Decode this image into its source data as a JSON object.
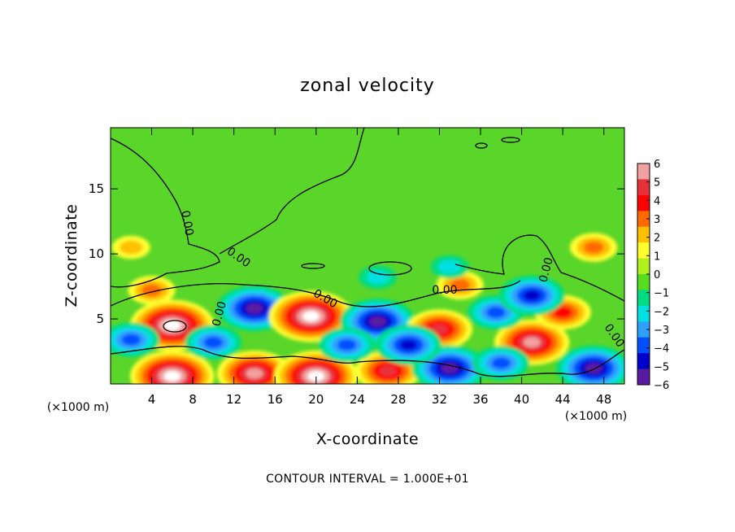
{
  "chart_data": {
    "type": "heatmap",
    "title": "zonal velocity",
    "xlabel": "X-coordinate",
    "ylabel": "Z-coordinate",
    "x_unit": "(×1000 m)",
    "z_unit": "(×1000 m)",
    "x_ticks": [
      4,
      8,
      12,
      16,
      20,
      24,
      28,
      32,
      36,
      40,
      44,
      48
    ],
    "y_ticks": [
      5,
      10,
      15
    ],
    "xlim": [
      0,
      50
    ],
    "ylim": [
      0,
      19.7
    ],
    "colorbar": {
      "ticks": [
        6,
        5,
        4,
        3,
        2,
        1,
        0,
        -1,
        -2,
        -3,
        -4,
        -5,
        -6
      ],
      "range": [
        -6,
        6
      ],
      "colors": [
        "#f2a0a0",
        "#e8303a",
        "#ff0000",
        "#ff6a00",
        "#ffc000",
        "#ffff30",
        "#b0f020",
        "#55dd22",
        "#00dc80",
        "#00e0e0",
        "#30a0ff",
        "#0050ff",
        "#0000cc",
        "#5a1aa0"
      ]
    },
    "contour_label": "0.00",
    "contour_interval_text": "CONTOUR INTERVAL = 1.000E+01",
    "features": [
      {
        "x": 6,
        "z": 4.5,
        "value": 7
      },
      {
        "x": 14,
        "z": 5.8,
        "value": -6
      },
      {
        "x": 19.5,
        "z": 5.2,
        "value": 7
      },
      {
        "x": 26,
        "z": 4.8,
        "value": -6
      },
      {
        "x": 32,
        "z": 4.2,
        "value": 5
      },
      {
        "x": 41,
        "z": 3.2,
        "value": 6
      },
      {
        "x": 44,
        "z": 5.5,
        "value": 4
      },
      {
        "x": 47,
        "z": 1.2,
        "value": -6
      },
      {
        "x": 6,
        "z": 0.6,
        "value": 7
      },
      {
        "x": 14,
        "z": 0.8,
        "value": 6
      },
      {
        "x": 20,
        "z": 0.6,
        "value": 7
      },
      {
        "x": 27,
        "z": 1.0,
        "value": 5
      },
      {
        "x": 33,
        "z": 1.2,
        "value": -6
      },
      {
        "x": 2,
        "z": 3.4,
        "value": -4
      },
      {
        "x": 10,
        "z": 3.2,
        "value": -4
      },
      {
        "x": 23,
        "z": 3.0,
        "value": -4
      },
      {
        "x": 29,
        "z": 3.0,
        "value": -5
      },
      {
        "x": 37.5,
        "z": 5.5,
        "value": -4
      },
      {
        "x": 41,
        "z": 6.8,
        "value": -5
      },
      {
        "x": 38,
        "z": 1.6,
        "value": -4
      },
      {
        "x": 4,
        "z": 7.2,
        "value": 3
      },
      {
        "x": 47,
        "z": 10.5,
        "value": 3
      },
      {
        "x": 34,
        "z": 7.6,
        "value": 3
      },
      {
        "x": 2,
        "z": 10.5,
        "value": 2
      },
      {
        "x": 33,
        "z": 9.0,
        "value": -2
      },
      {
        "x": 26,
        "z": 8.2,
        "value": -2
      }
    ]
  }
}
